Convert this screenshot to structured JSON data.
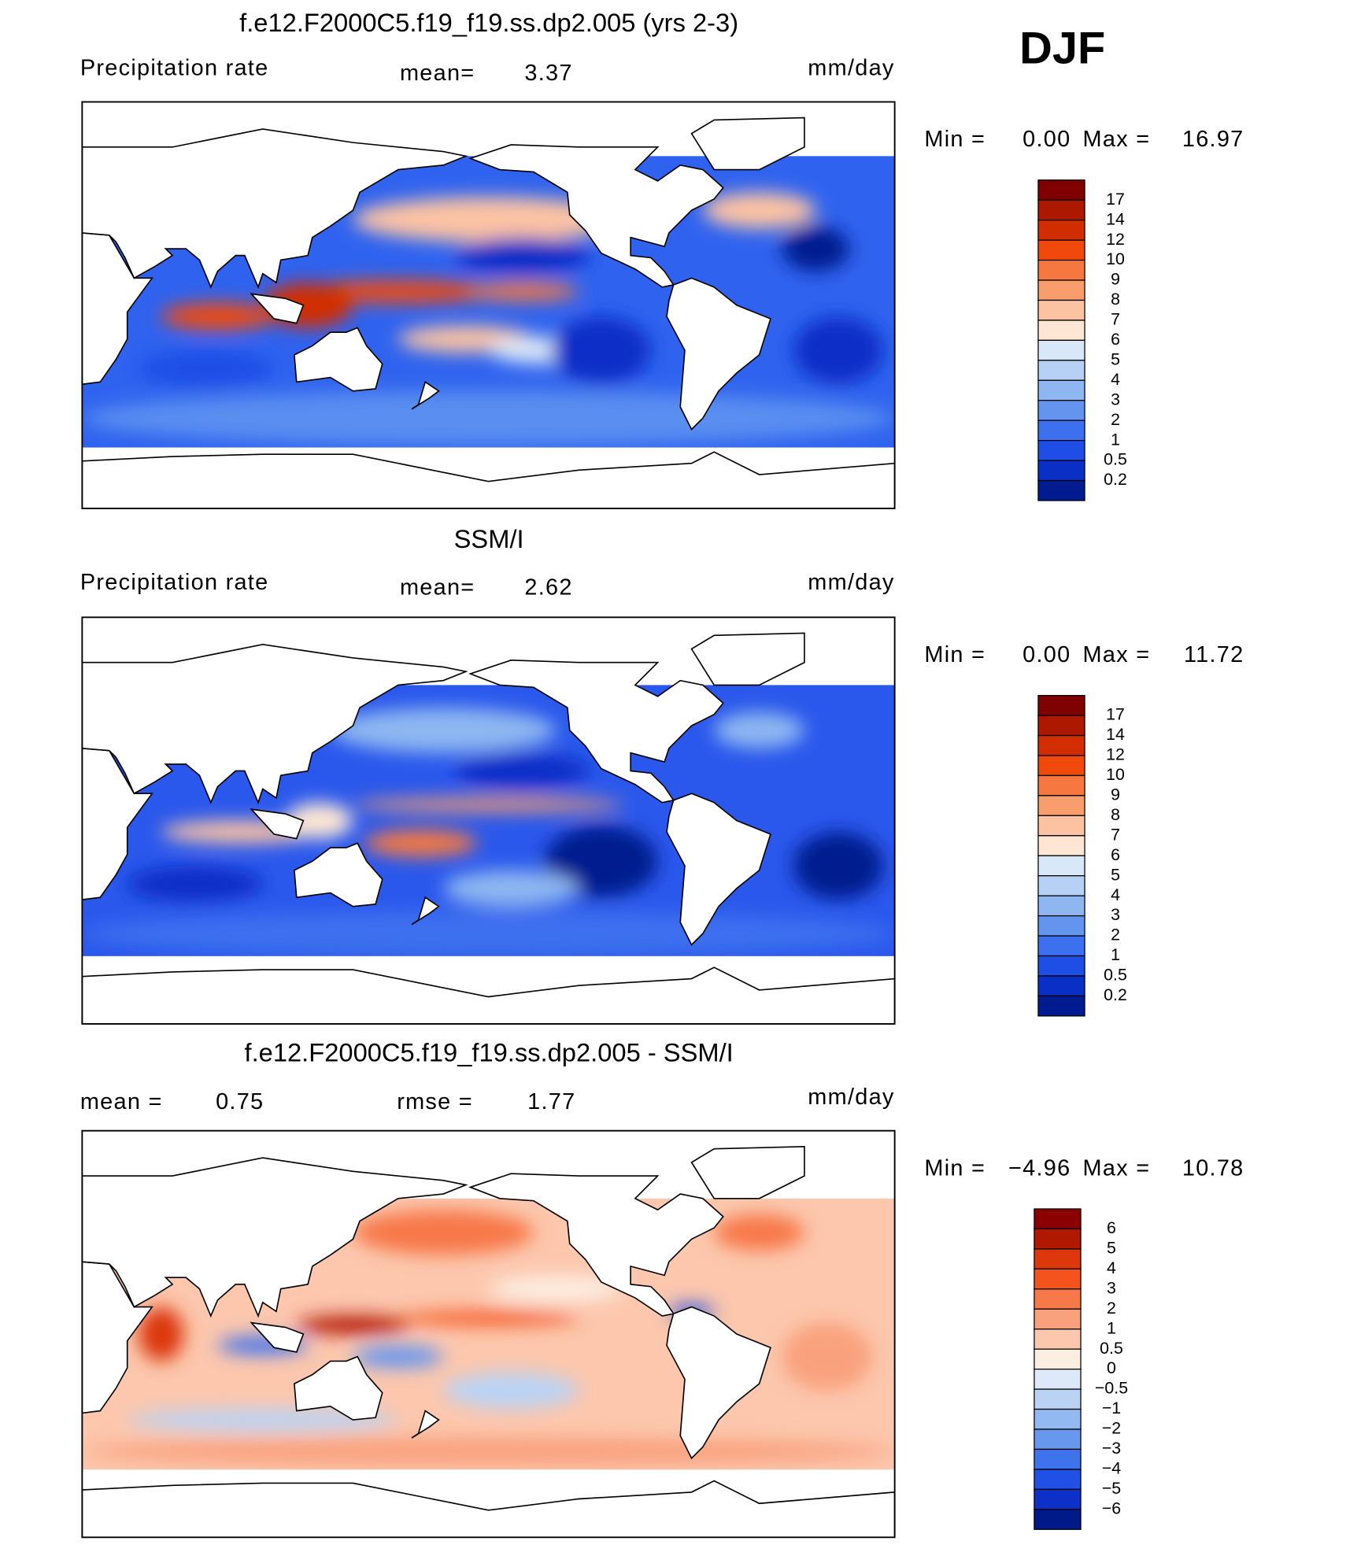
{
  "season": "DJF",
  "panels": [
    {
      "title": "f.e12.F2000C5.f19_f19.ss.dp2.005 (yrs 2-3)",
      "left_label": "Precipitation rate",
      "stat1_label": "mean=",
      "stat1_value": "3.37",
      "units": "mm/day",
      "min_label": "Min =",
      "min_value": "0.00",
      "max_label": "Max =",
      "max_value": "16.97",
      "colorbar_labels": [
        "17",
        "14",
        "12",
        "10",
        "9",
        "8",
        "7",
        "6",
        "5",
        "4",
        "3",
        "2",
        "1",
        "0.5",
        "0.2"
      ]
    },
    {
      "title": "SSM/I",
      "left_label": "Precipitation rate",
      "stat1_label": "mean=",
      "stat1_value": "2.62",
      "units": "mm/day",
      "min_label": "Min =",
      "min_value": "0.00",
      "max_label": "Max =",
      "max_value": "11.72",
      "colorbar_labels": [
        "17",
        "14",
        "12",
        "10",
        "9",
        "8",
        "7",
        "6",
        "5",
        "4",
        "3",
        "2",
        "1",
        "0.5",
        "0.2"
      ]
    },
    {
      "title": "f.e12.F2000C5.f19_f19.ss.dp2.005 - SSM/I",
      "stat1_label": "mean =",
      "stat1_value": "0.75",
      "stat2_label": "rmse =",
      "stat2_value": "1.77",
      "units": "mm/day",
      "min_label": "Min =",
      "min_value": "−4.96",
      "max_label": "Max =",
      "max_value": "10.78",
      "colorbar_labels": [
        "6",
        "5",
        "4",
        "3",
        "2",
        "1",
        "0.5",
        "0",
        "−0.5",
        "−1",
        "−2",
        "−3",
        "−4",
        "−5",
        "−6"
      ]
    }
  ]
}
